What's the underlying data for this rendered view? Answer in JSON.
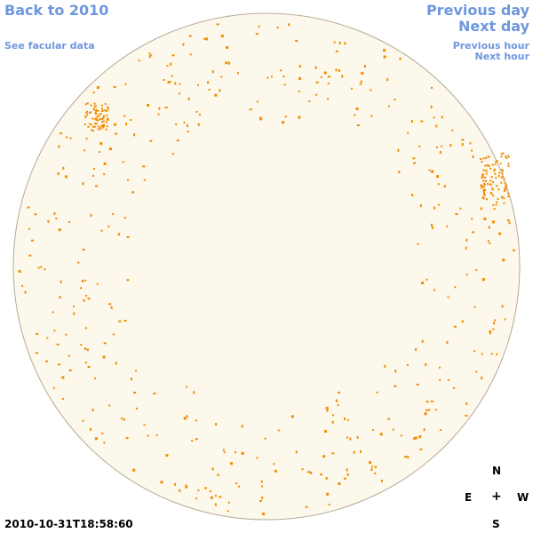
{
  "nav": {
    "back_label": "Back to 2010",
    "facular_label": "See facular data",
    "prev_day_label": "Previous day",
    "next_day_label": "Next day",
    "prev_hour_label": "Previous hour",
    "next_hour_label": "Next hour"
  },
  "compass": {
    "north": "N",
    "east": "E",
    "center": "+",
    "west": "W",
    "south": "S"
  },
  "timestamp": "2010-10-31T18:58:60",
  "colors": {
    "link": "#6f97de",
    "disk_fill": "#fdf8ec",
    "disk_border": "#b5aa98",
    "plage": "#f08c00"
  }
}
